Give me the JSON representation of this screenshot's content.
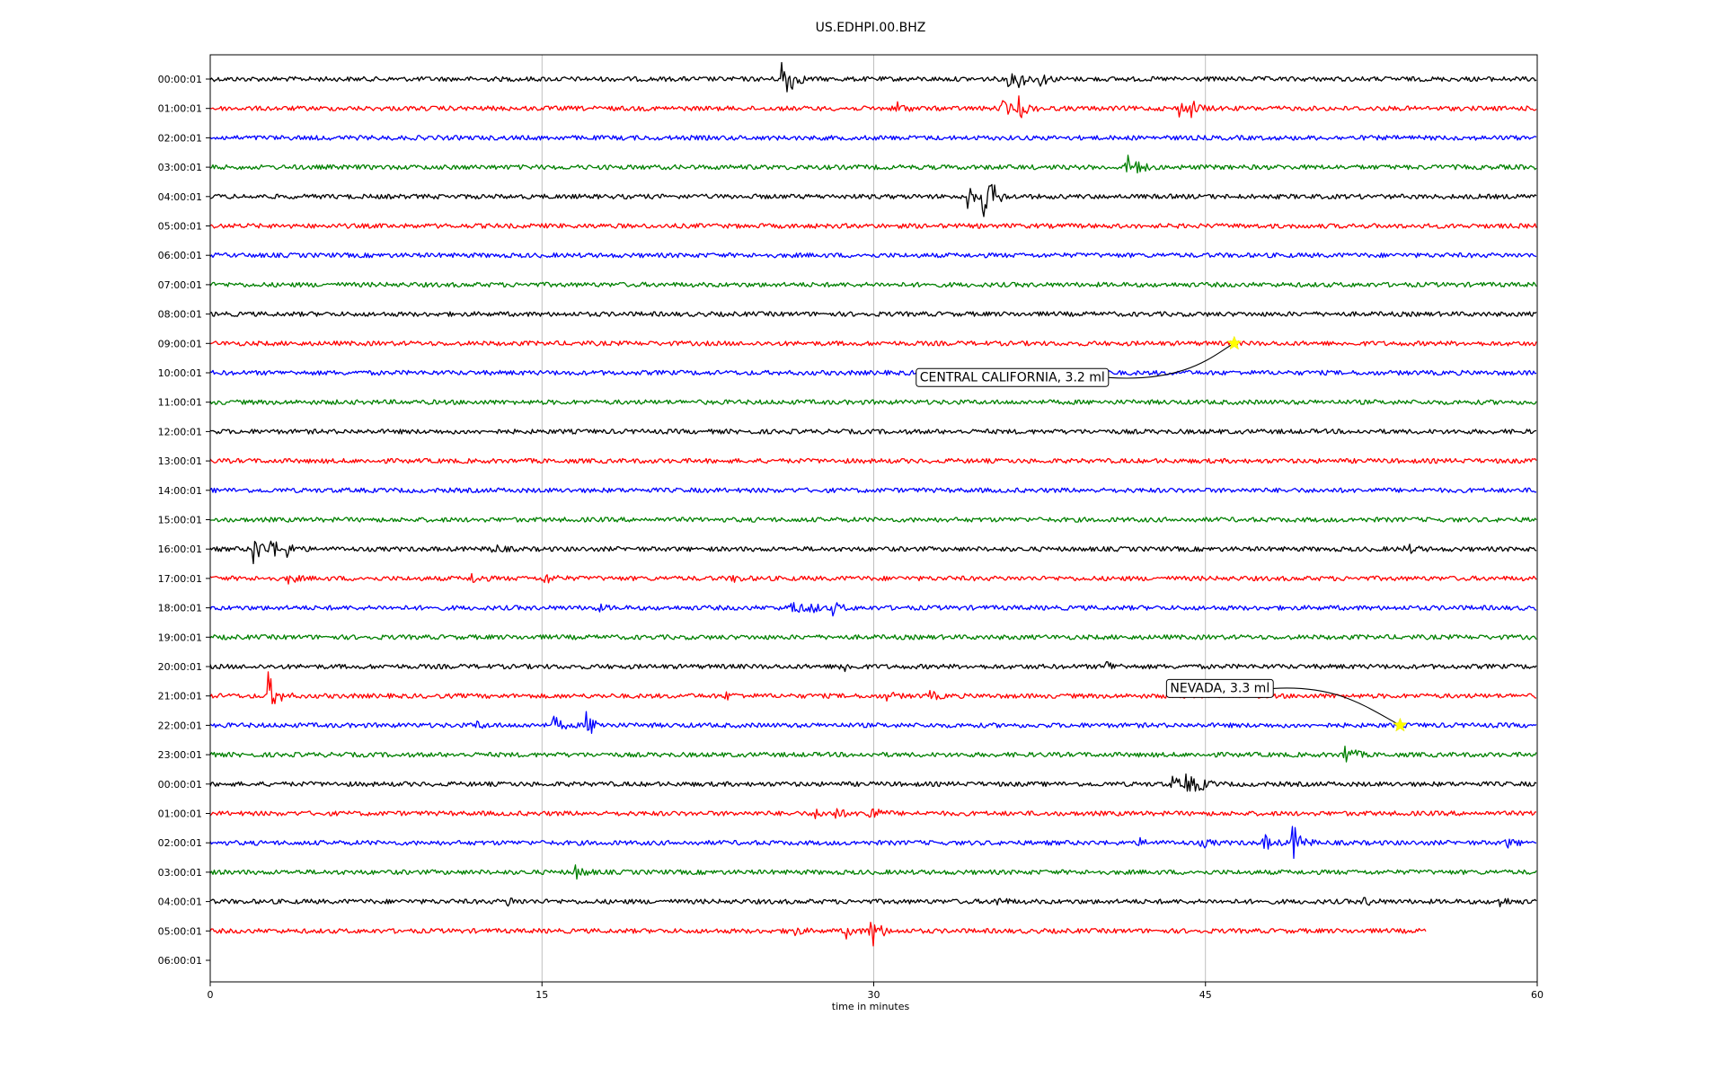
{
  "chart_data": {
    "type": "line",
    "title": "US.EDHPI.00.BHZ",
    "xlabel": "time in minutes",
    "ylabel": "",
    "xlim": [
      0,
      60
    ],
    "x_ticks": [
      0,
      15,
      30,
      45,
      60
    ],
    "grid": "vertical lines at x ticks",
    "row_labels": [
      "00:00:01",
      "01:00:01",
      "02:00:01",
      "03:00:01",
      "04:00:01",
      "05:00:01",
      "06:00:01",
      "07:00:01",
      "08:00:01",
      "09:00:01",
      "10:00:01",
      "11:00:01",
      "12:00:01",
      "13:00:01",
      "14:00:01",
      "15:00:01",
      "16:00:01",
      "17:00:01",
      "18:00:01",
      "19:00:01",
      "20:00:01",
      "21:00:01",
      "22:00:01",
      "23:00:01",
      "00:00:01",
      "01:00:01",
      "02:00:01",
      "03:00:01",
      "04:00:01",
      "05:00:01",
      "06:00:01"
    ],
    "trace_colors": [
      "#000000",
      "#ff0000",
      "#0000ff",
      "#008000"
    ],
    "trace_count": 30,
    "last_trace_end_minute": 55,
    "traces": [
      {
        "row": 0,
        "color": "#000000",
        "events": [
          {
            "t": 25.8,
            "amp": 1.0
          },
          {
            "t": 26.0,
            "amp": 0.5
          },
          {
            "t": 35.9,
            "amp": 0.4
          },
          {
            "t": 36.5,
            "amp": 0.4
          },
          {
            "t": 37.5,
            "amp": 0.3
          }
        ]
      },
      {
        "row": 1,
        "color": "#ff0000",
        "events": [
          {
            "t": 31.0,
            "amp": 0.3
          },
          {
            "t": 35.8,
            "amp": 0.4
          },
          {
            "t": 36.5,
            "amp": 0.5
          },
          {
            "t": 43.8,
            "amp": 0.3
          },
          {
            "t": 44.3,
            "amp": 0.35
          }
        ]
      },
      {
        "row": 2,
        "color": "#0000ff",
        "events": []
      },
      {
        "row": 3,
        "color": "#008000",
        "events": [
          {
            "t": 41.4,
            "amp": 0.6
          },
          {
            "t": 41.8,
            "amp": 0.2
          }
        ]
      },
      {
        "row": 4,
        "color": "#000000",
        "events": [
          {
            "t": 34.2,
            "amp": 0.5
          },
          {
            "t": 34.9,
            "amp": 1.0
          },
          {
            "t": 35.3,
            "amp": 0.4
          }
        ]
      },
      {
        "row": 5,
        "color": "#ff0000",
        "events": []
      },
      {
        "row": 6,
        "color": "#0000ff",
        "events": []
      },
      {
        "row": 7,
        "color": "#008000",
        "events": []
      },
      {
        "row": 8,
        "color": "#000000",
        "events": []
      },
      {
        "row": 9,
        "color": "#ff0000",
        "events": []
      },
      {
        "row": 10,
        "color": "#0000ff",
        "events": []
      },
      {
        "row": 11,
        "color": "#008000",
        "events": []
      },
      {
        "row": 12,
        "color": "#000000",
        "events": []
      },
      {
        "row": 13,
        "color": "#ff0000",
        "events": []
      },
      {
        "row": 14,
        "color": "#0000ff",
        "events": []
      },
      {
        "row": 15,
        "color": "#008000",
        "events": []
      },
      {
        "row": 16,
        "color": "#000000",
        "events": [
          {
            "t": 1.9,
            "amp": 0.8
          },
          {
            "t": 2.7,
            "amp": 0.5
          },
          {
            "t": 3.4,
            "amp": 0.3
          },
          {
            "t": 12.7,
            "amp": 0.25
          },
          {
            "t": 54.0,
            "amp": 0.25
          }
        ]
      },
      {
        "row": 17,
        "color": "#ff0000",
        "events": [
          {
            "t": 3.5,
            "amp": 0.2
          },
          {
            "t": 11.8,
            "amp": 0.2
          },
          {
            "t": 15.1,
            "amp": 0.25
          },
          {
            "t": 23.6,
            "amp": 0.15
          }
        ]
      },
      {
        "row": 18,
        "color": "#0000ff",
        "events": [
          {
            "t": 17.4,
            "amp": 0.15
          },
          {
            "t": 26.2,
            "amp": 0.4
          },
          {
            "t": 27.0,
            "amp": 0.35
          },
          {
            "t": 28.1,
            "amp": 0.3
          }
        ]
      },
      {
        "row": 19,
        "color": "#008000",
        "events": []
      },
      {
        "row": 20,
        "color": "#000000",
        "events": [
          {
            "t": 28.5,
            "amp": 0.3
          },
          {
            "t": 40.5,
            "amp": 0.25
          }
        ]
      },
      {
        "row": 21,
        "color": "#ff0000",
        "events": [
          {
            "t": 2.6,
            "amp": 1.0
          },
          {
            "t": 23.3,
            "amp": 0.15
          },
          {
            "t": 30.5,
            "amp": 0.2
          },
          {
            "t": 32.5,
            "amp": 0.2
          }
        ]
      },
      {
        "row": 22,
        "color": "#0000ff",
        "events": [
          {
            "t": 15.5,
            "amp": 0.4
          },
          {
            "t": 17.0,
            "amp": 0.6
          },
          {
            "t": 12.0,
            "amp": 0.15
          }
        ]
      },
      {
        "row": 23,
        "color": "#008000",
        "events": [
          {
            "t": 51.3,
            "amp": 0.5
          }
        ]
      },
      {
        "row": 24,
        "color": "#000000",
        "events": [
          {
            "t": 43.5,
            "amp": 0.3
          },
          {
            "t": 44.1,
            "amp": 0.5
          },
          {
            "t": 44.6,
            "amp": 0.3
          }
        ]
      },
      {
        "row": 25,
        "color": "#ff0000",
        "events": [
          {
            "t": 27.3,
            "amp": 0.2
          },
          {
            "t": 28.2,
            "amp": 0.25
          },
          {
            "t": 29.7,
            "amp": 0.55
          }
        ]
      },
      {
        "row": 26,
        "color": "#0000ff",
        "events": [
          {
            "t": 42.0,
            "amp": 0.15
          },
          {
            "t": 44.8,
            "amp": 0.2
          },
          {
            "t": 47.6,
            "amp": 0.4
          },
          {
            "t": 48.9,
            "amp": 0.9
          },
          {
            "t": 58.6,
            "amp": 0.2
          }
        ]
      },
      {
        "row": 27,
        "color": "#008000",
        "events": [
          {
            "t": 16.5,
            "amp": 0.3
          }
        ]
      },
      {
        "row": 28,
        "color": "#000000",
        "events": [
          {
            "t": 13.4,
            "amp": 0.2
          },
          {
            "t": 35.5,
            "amp": 0.2
          },
          {
            "t": 52.1,
            "amp": 0.2
          },
          {
            "t": 58.3,
            "amp": 0.2
          }
        ]
      },
      {
        "row": 29,
        "color": "#ff0000",
        "events": [
          {
            "t": 26.1,
            "amp": 0.4
          },
          {
            "t": 29.8,
            "amp": 1.0
          },
          {
            "t": 28.7,
            "amp": 0.3
          }
        ]
      }
    ],
    "annotations": [
      {
        "label": "CENTRAL CALIFORNIA, 3.2 ml",
        "row": 9,
        "time_min": 46.3,
        "marker": "yellow star",
        "box_side": "below-left"
      },
      {
        "label": "NEVADA, 3.3 ml",
        "row": 22,
        "time_min": 53.8,
        "marker": "yellow star",
        "box_side": "above-left"
      }
    ]
  }
}
